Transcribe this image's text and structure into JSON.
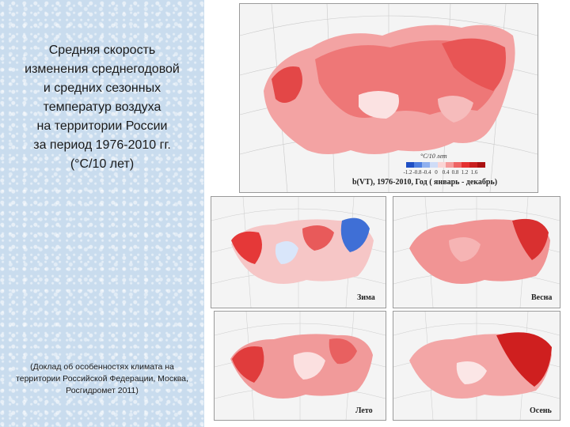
{
  "left_panel": {
    "title": "Средняя скорость\nизменения среднегодовой\nи средних сезонных\nтемператур воздуха\nна территории России\nза период 1976-2010 гг.\n(°С/10 лет)",
    "source": "(Доклад об особенностях климата на\nтерритории Российской Федерации, Москва,\nРосгидромет 2011)"
  },
  "maps": {
    "annual": {
      "caption": "b(VT), 1976-2010, Год ( январь - декабрь)",
      "legend_title": "°C/10 лет",
      "legend_ticks": [
        "-1.2",
        "-0.8",
        "-0.4",
        "0",
        "0.4",
        "0.8",
        "1.2",
        "1.6"
      ],
      "legend_colors": [
        "#1f4fc4",
        "#4f7fe0",
        "#8fb0ef",
        "#cfdcf7",
        "#fbd5d5",
        "#f59b9b",
        "#ee6464",
        "#e53030",
        "#c91f1f",
        "#aa1111"
      ]
    },
    "winter": {
      "caption": "Зима"
    },
    "spring": {
      "caption": "Весна"
    },
    "summer": {
      "caption": "Лето"
    },
    "autumn": {
      "caption": "Осень"
    }
  }
}
